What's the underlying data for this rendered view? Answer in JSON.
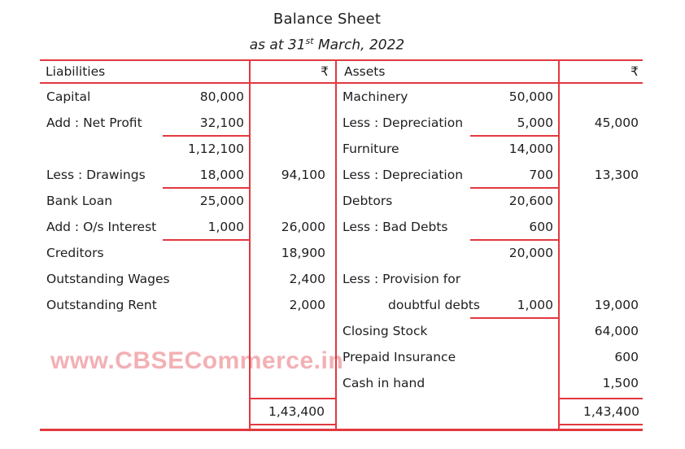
{
  "title": "Balance Sheet",
  "subtitle": {
    "prefix": "as at 31",
    "superscript": "st",
    "suffix": " March, 2022"
  },
  "watermark": "www.CBSECommerce.in",
  "colors": {
    "rule_red": "#e2383f",
    "text": "#1e1e1e",
    "watermark_pink": "#f3b0b4",
    "background": "#ffffff"
  },
  "table": {
    "headers": {
      "liabilities": "Liabilities",
      "liabilities_amount_symbol": "₹",
      "assets": "Assets",
      "assets_amount_symbol": "₹"
    },
    "liabilities": {
      "rows": [
        {
          "label": "Capital",
          "sub": "80,000"
        },
        {
          "label": "Add : Net Profit",
          "sub": "32,100",
          "underline": true
        },
        {
          "label": "",
          "sub": "1,12,100"
        },
        {
          "label": "Less : Drawings",
          "sub": "18,000",
          "underline": true,
          "amount": "94,100"
        },
        {
          "label": "Bank Loan",
          "sub": "25,000"
        },
        {
          "label": "Add : O/s Interest",
          "sub": "1,000",
          "underline": true,
          "amount": "26,000"
        },
        {
          "label": "Creditors",
          "amount": "18,900"
        },
        {
          "label": "Outstanding Wages",
          "amount": "2,400"
        },
        {
          "label": "Outstanding Rent",
          "amount": "2,000"
        },
        {
          "label": ""
        },
        {
          "label": ""
        },
        {
          "label": ""
        }
      ],
      "total": "1,43,400"
    },
    "assets": {
      "rows": [
        {
          "label": "Machinery",
          "sub": "50,000"
        },
        {
          "label": "Less : Depreciation",
          "sub": "5,000",
          "underline": true,
          "amount": "45,000"
        },
        {
          "label": "Furniture",
          "sub": "14,000"
        },
        {
          "label": "Less : Depreciation",
          "sub": "700",
          "underline": true,
          "amount": "13,300"
        },
        {
          "label": "Debtors",
          "sub": "20,600"
        },
        {
          "label": "Less : Bad Debts",
          "sub": "600",
          "underline": true
        },
        {
          "label": "",
          "sub": "20,000"
        },
        {
          "label": "Less : Provision for"
        },
        {
          "label": "doubtful debts",
          "indent": true,
          "sub": "1,000",
          "underline": true,
          "amount": "19,000"
        },
        {
          "label": "Closing Stock",
          "amount": "64,000"
        },
        {
          "label": "Prepaid Insurance",
          "amount": "600"
        },
        {
          "label": "Cash in hand",
          "amount": "1,500"
        }
      ],
      "total": "1,43,400"
    }
  }
}
